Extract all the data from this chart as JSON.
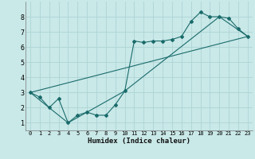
{
  "title": "",
  "xlabel": "Humidex (Indice chaleur)",
  "ylabel": "",
  "background_color": "#c9e8e8",
  "grid_color": "#aed4d4",
  "line_color": "#1a6b6b",
  "xlim": [
    -0.5,
    23.5
  ],
  "ylim": [
    0.5,
    9.0
  ],
  "xticks": [
    0,
    1,
    2,
    3,
    4,
    5,
    6,
    7,
    8,
    9,
    10,
    11,
    12,
    13,
    14,
    15,
    16,
    17,
    18,
    19,
    20,
    21,
    22,
    23
  ],
  "yticks": [
    1,
    2,
    3,
    4,
    5,
    6,
    7,
    8
  ],
  "line1_x": [
    0,
    1,
    2,
    3,
    4,
    5,
    6,
    7,
    8,
    9,
    10,
    11,
    12,
    13,
    14,
    15,
    16,
    17,
    18,
    19,
    20,
    21,
    22,
    23
  ],
  "line1_y": [
    3.0,
    2.7,
    2.0,
    2.6,
    1.0,
    1.5,
    1.7,
    1.5,
    1.5,
    2.2,
    3.1,
    6.4,
    6.3,
    6.4,
    6.4,
    6.5,
    6.7,
    7.7,
    8.3,
    8.0,
    8.0,
    7.9,
    7.2,
    6.7
  ],
  "line2_x": [
    0,
    4,
    10,
    20,
    23
  ],
  "line2_y": [
    3.0,
    1.0,
    3.1,
    8.0,
    6.7
  ],
  "line3_x": [
    0,
    23
  ],
  "line3_y": [
    3.0,
    6.7
  ]
}
